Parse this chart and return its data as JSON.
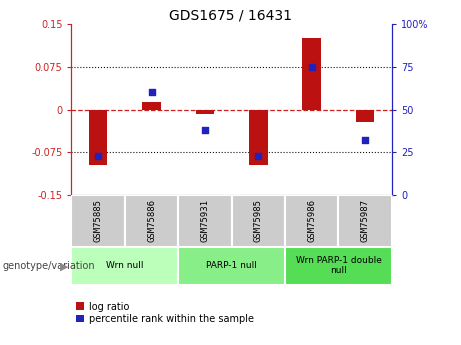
{
  "title": "GDS1675 / 16431",
  "samples": [
    "GSM75885",
    "GSM75886",
    "GSM75931",
    "GSM75985",
    "GSM75986",
    "GSM75987"
  ],
  "log_ratio": [
    -0.098,
    0.013,
    -0.008,
    -0.098,
    0.125,
    -0.022
  ],
  "percentile_rank": [
    23,
    60,
    38,
    23,
    75,
    32
  ],
  "groups": [
    {
      "label": "Wrn null",
      "start": 0,
      "end": 2,
      "color": "#bbffbb"
    },
    {
      "label": "PARP-1 null",
      "start": 2,
      "end": 4,
      "color": "#88ee88"
    },
    {
      "label": "Wrn PARP-1 double\nnull",
      "start": 4,
      "end": 6,
      "color": "#55dd55"
    }
  ],
  "ylim_left": [
    -0.15,
    0.15
  ],
  "ylim_right": [
    0,
    100
  ],
  "yticks_left": [
    -0.15,
    -0.075,
    0,
    0.075,
    0.15
  ],
  "yticks_right": [
    0,
    25,
    50,
    75,
    100
  ],
  "ytick_labels_left": [
    "-0.15",
    "-0.075",
    "0",
    "0.075",
    "0.15"
  ],
  "ytick_labels_right": [
    "0",
    "25",
    "50",
    "75",
    "100%"
  ],
  "bar_color": "#bb1111",
  "dot_color": "#2222bb",
  "hline_color": "#cc2222",
  "grid_color": "#111111",
  "bar_width": 0.35,
  "left_tick_color": "#cc2222",
  "right_tick_color": "#2222bb",
  "sample_box_color": "#cccccc",
  "sample_box_edge": "#ffffff"
}
